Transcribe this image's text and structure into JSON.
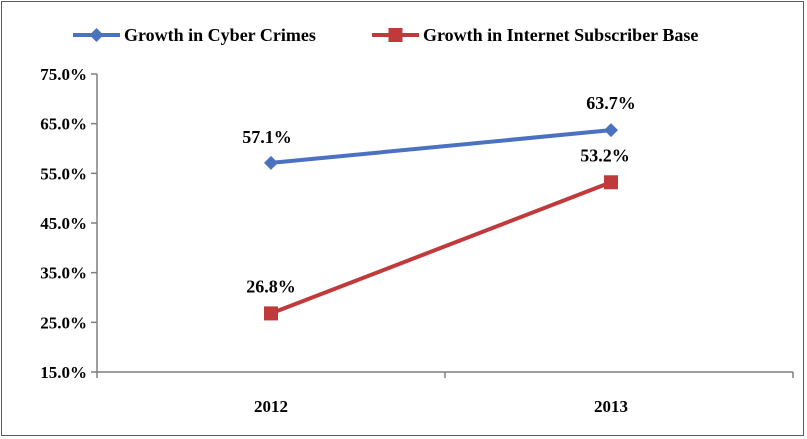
{
  "chart_data": {
    "type": "line",
    "title": "",
    "xlabel": "",
    "ylabel": "",
    "categories": [
      "2012",
      "2013"
    ],
    "ylim": [
      15.0,
      75.0
    ],
    "y_ticks": [
      "15.0%",
      "25.0%",
      "35.0%",
      "45.0%",
      "55.0%",
      "65.0%",
      "75.0%"
    ],
    "grid": false,
    "legend_position": "top",
    "series": [
      {
        "name": "Growth in Cyber Crimes",
        "values": [
          57.1,
          63.7
        ],
        "labels": [
          "57.1%",
          "63.7%"
        ],
        "color": "#4a72c0",
        "marker": "diamond"
      },
      {
        "name": "Growth in Internet Subscriber Base",
        "values": [
          26.8,
          53.2
        ],
        "labels": [
          "26.8%",
          "53.2%"
        ],
        "color": "#c0393b",
        "marker": "square"
      }
    ]
  }
}
